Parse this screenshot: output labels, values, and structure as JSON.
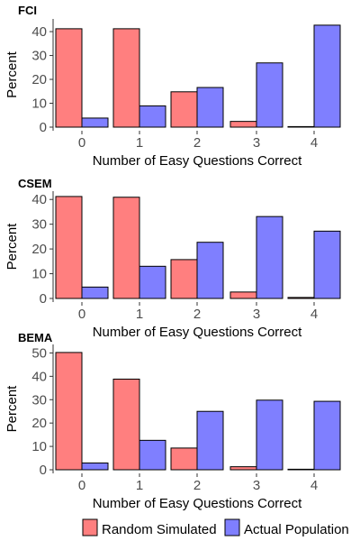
{
  "colors": {
    "random_simulated": "#ff7f7f",
    "actual_population": "#7f7fff",
    "bar_outline": "#000000",
    "axis": "#333333"
  },
  "legend": {
    "position": "bottom",
    "items": [
      {
        "label": "Random Simulated",
        "color": "#ff7f7f"
      },
      {
        "label": "Actual Population",
        "color": "#7f7fff"
      }
    ]
  },
  "chart_data": [
    {
      "type": "bar",
      "title": "FCI",
      "xlabel": "Number of Easy Questions Correct",
      "ylabel": "Percent",
      "categories": [
        "0",
        "1",
        "2",
        "3",
        "4"
      ],
      "yticks": [
        0,
        10,
        20,
        30,
        40
      ],
      "ylim": [
        0,
        43.8
      ],
      "grid": false,
      "series": [
        {
          "name": "Random Simulated",
          "values": [
            41.2,
            41.2,
            14.8,
            2.4,
            0.2
          ]
        },
        {
          "name": "Actual Population",
          "values": [
            3.8,
            8.9,
            16.6,
            26.9,
            42.7
          ]
        }
      ]
    },
    {
      "type": "bar",
      "title": "CSEM",
      "xlabel": "Number of Easy Questions Correct",
      "ylabel": "Percent",
      "categories": [
        "0",
        "1",
        "2",
        "3",
        "4"
      ],
      "yticks": [
        0,
        10,
        20,
        30,
        40
      ],
      "ylim": [
        0,
        41.9
      ],
      "grid": false,
      "series": [
        {
          "name": "Random Simulated",
          "values": [
            41.2,
            40.9,
            15.7,
            2.6,
            0.4
          ]
        },
        {
          "name": "Actual Population",
          "values": [
            4.6,
            13.0,
            22.7,
            33.1,
            27.2
          ]
        }
      ]
    },
    {
      "type": "bar",
      "title": "BEMA",
      "xlabel": "Number of Easy Questions Correct",
      "ylabel": "Percent",
      "categories": [
        "0",
        "1",
        "2",
        "3",
        "4"
      ],
      "yticks": [
        0,
        10,
        20,
        30,
        40,
        50
      ],
      "ylim": [
        0,
        52.1
      ],
      "grid": false,
      "series": [
        {
          "name": "Random Simulated",
          "values": [
            50.2,
            38.8,
            9.3,
            1.3,
            0.1
          ]
        },
        {
          "name": "Actual Population",
          "values": [
            2.9,
            12.6,
            25.0,
            29.8,
            29.3
          ]
        }
      ]
    }
  ]
}
